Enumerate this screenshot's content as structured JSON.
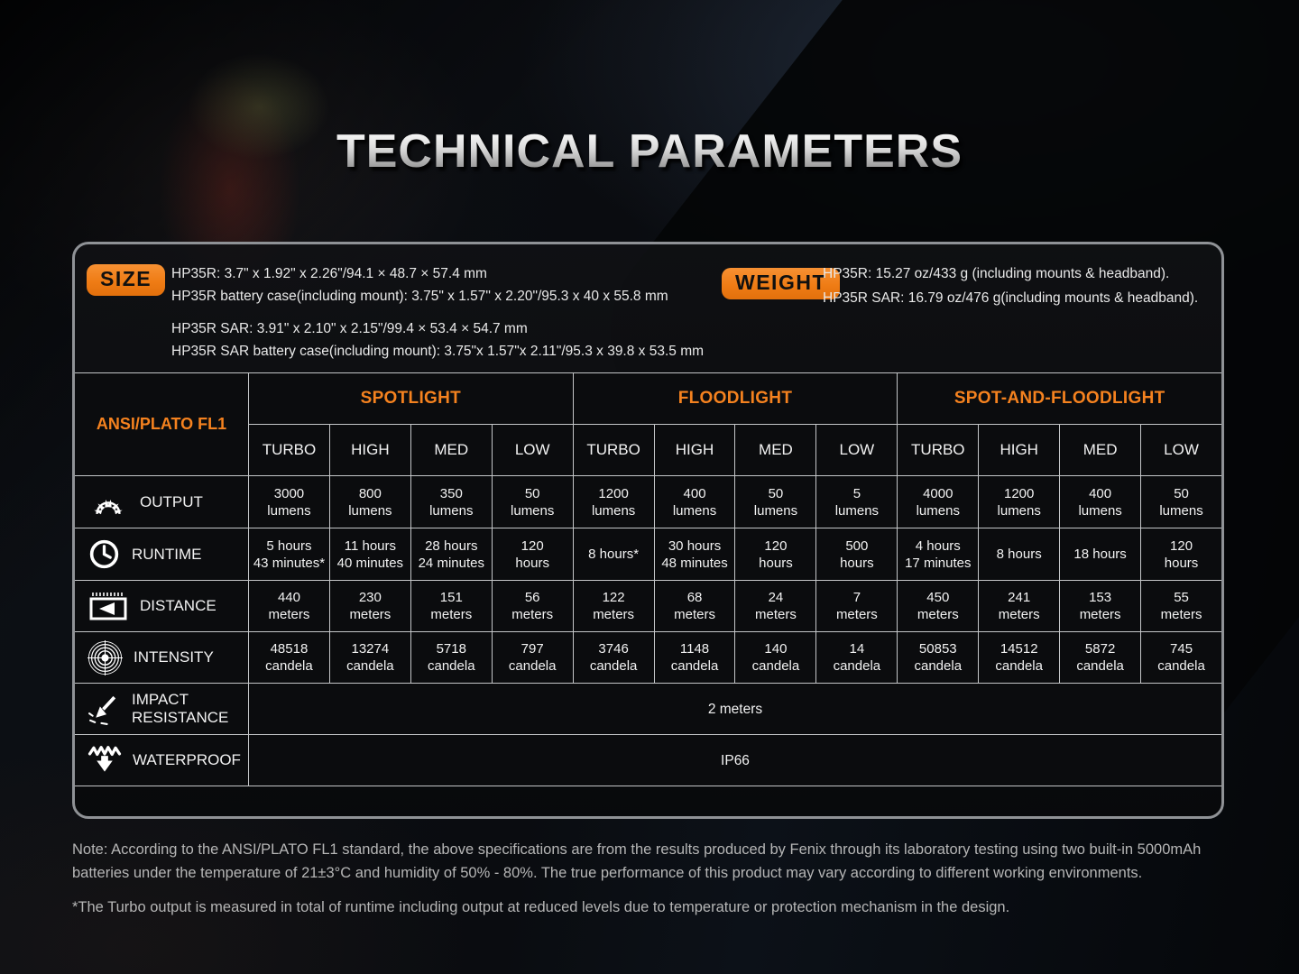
{
  "title": "TECHNICAL PARAMETERS",
  "colors": {
    "accent": "#f5821f",
    "grid_line": "#c4c6c8",
    "panel_border": "#8f9296"
  },
  "size": {
    "label": "SIZE",
    "lines": [
      "HP35R: 3.7\" x 1.92\" x 2.26\"/94.1 × 48.7 × 57.4 mm",
      "HP35R battery case(including mount): 3.75\" x 1.57\" x 2.20\"/95.3 x 40 x 55.8 mm",
      "HP35R SAR: 3.91\" x 2.10\" x 2.15\"/99.4 × 53.4 × 54.7 mm",
      "HP35R SAR battery case(including mount): 3.75\"x 1.57\"x 2.11\"/95.3 x 39.8 x 53.5 mm"
    ]
  },
  "weight": {
    "label": "WEIGHT",
    "lines": [
      "HP35R: 15.27 oz/433 g (including mounts & headband).",
      "HP35R SAR: 16.79 oz/476 g(including mounts & headband)."
    ]
  },
  "table": {
    "corner_label": "ANSI/PLATO FL1",
    "group_headers": [
      "SPOTLIGHT",
      "FLOODLIGHT",
      "SPOT-AND-FLOODLIGHT"
    ],
    "mode_headers": [
      "TURBO",
      "HIGH",
      "MED",
      "LOW",
      "TURBO",
      "HIGH",
      "MED",
      "LOW",
      "TURBO",
      "HIGH",
      "MED",
      "LOW"
    ],
    "rows": [
      {
        "icon": "sunburst-icon",
        "label": "OUTPUT",
        "cells": [
          [
            "3000",
            "lumens"
          ],
          [
            "800",
            "lumens"
          ],
          [
            "350",
            "lumens"
          ],
          [
            "50",
            "lumens"
          ],
          [
            "1200",
            "lumens"
          ],
          [
            "400",
            "lumens"
          ],
          [
            "50",
            "lumens"
          ],
          [
            "5",
            "lumens"
          ],
          [
            "4000",
            "lumens"
          ],
          [
            "1200",
            "lumens"
          ],
          [
            "400",
            "lumens"
          ],
          [
            "50",
            "lumens"
          ]
        ]
      },
      {
        "icon": "clock-icon",
        "label": "RUNTIME",
        "cells": [
          [
            "5 hours",
            "43 minutes*"
          ],
          [
            "11 hours",
            "40 minutes"
          ],
          [
            "28 hours",
            "24 minutes"
          ],
          [
            "120",
            "hours"
          ],
          [
            "8 hours*"
          ],
          [
            "30 hours",
            "48 minutes"
          ],
          [
            "120",
            "hours"
          ],
          [
            "500",
            "hours"
          ],
          [
            "4 hours",
            "17 minutes"
          ],
          [
            "8 hours"
          ],
          [
            "18 hours"
          ],
          [
            "120",
            "hours"
          ]
        ]
      },
      {
        "icon": "ruler-arrow-icon",
        "label": "DISTANCE",
        "cells": [
          [
            "440",
            "meters"
          ],
          [
            "230",
            "meters"
          ],
          [
            "151",
            "meters"
          ],
          [
            "56",
            "meters"
          ],
          [
            "122",
            "meters"
          ],
          [
            "68",
            "meters"
          ],
          [
            "24",
            "meters"
          ],
          [
            "7",
            "meters"
          ],
          [
            "450",
            "meters"
          ],
          [
            "241",
            "meters"
          ],
          [
            "153",
            "meters"
          ],
          [
            "55",
            "meters"
          ]
        ]
      },
      {
        "icon": "target-icon",
        "label": "INTENSITY",
        "cells": [
          [
            "48518",
            "candela"
          ],
          [
            "13274",
            "candela"
          ],
          [
            "5718",
            "candela"
          ],
          [
            "797",
            "candela"
          ],
          [
            "3746",
            "candela"
          ],
          [
            "1148",
            "candela"
          ],
          [
            "140",
            "candela"
          ],
          [
            "14",
            "candela"
          ],
          [
            "50853",
            "candela"
          ],
          [
            "14512",
            "candela"
          ],
          [
            "5872",
            "candela"
          ],
          [
            "745",
            "candela"
          ]
        ]
      }
    ],
    "span_rows": [
      {
        "icon": "impact-arrow-icon",
        "label_lines": [
          "IMPACT",
          "RESISTANCE"
        ],
        "value": "2 meters"
      },
      {
        "icon": "water-splash-icon",
        "label_lines": [
          "WATERPROOF"
        ],
        "value": "IP66"
      }
    ]
  },
  "notes": [
    "Note: According to the ANSI/PLATO FL1 standard, the above specifications are from the results produced by Fenix through its laboratory testing using two built-in 5000mAh batteries under the temperature of 21±3°C and humidity of 50% - 80%. The true performance of this product may vary according to different working environments.",
    "*The Turbo output is measured in total of runtime including output at reduced levels due to temperature or protection mechanism in the design."
  ]
}
